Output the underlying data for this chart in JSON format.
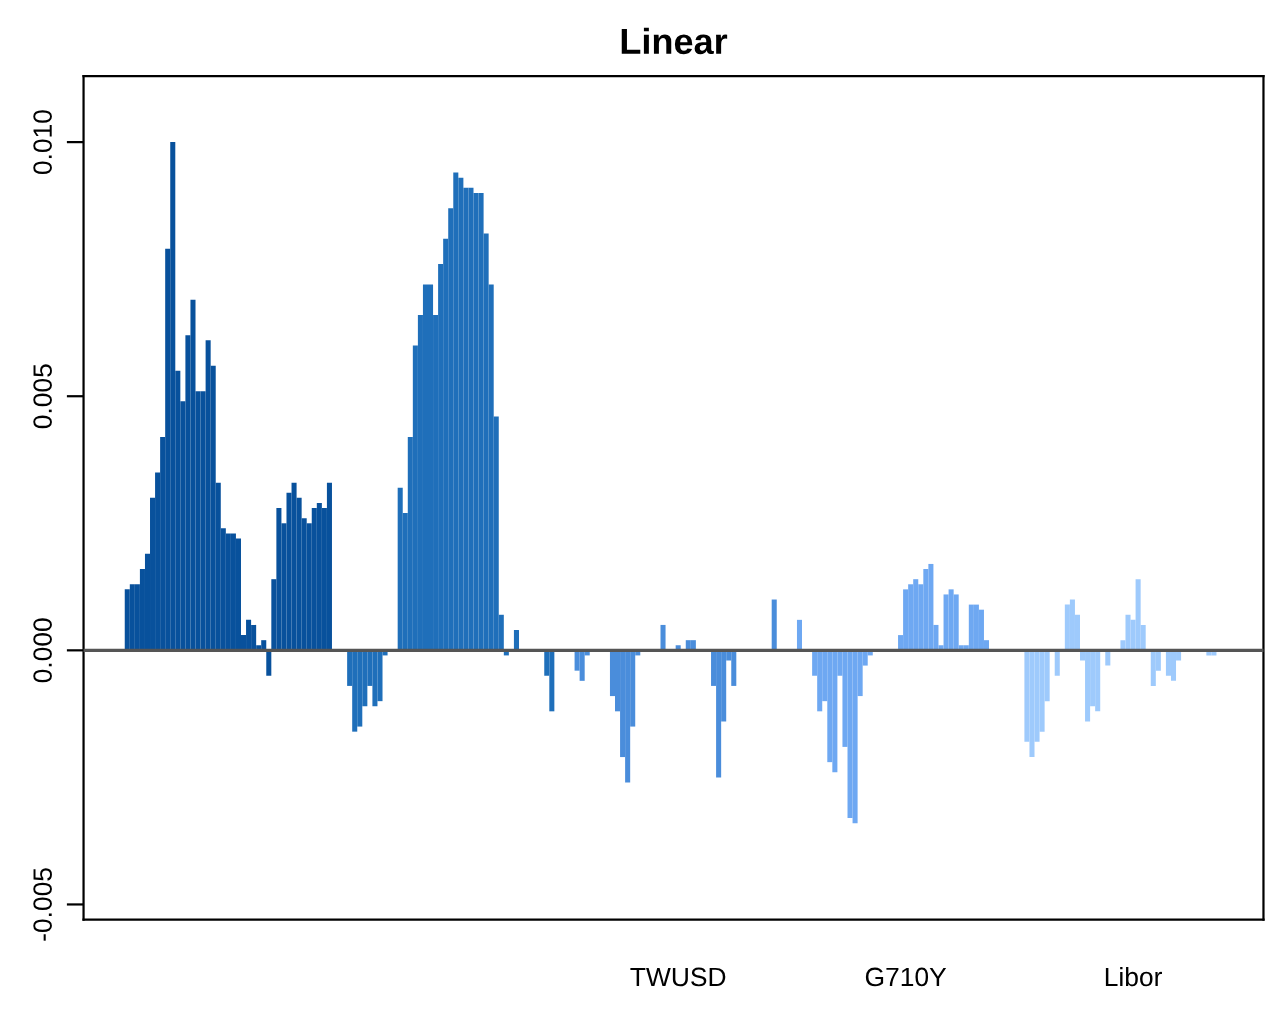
{
  "chart_data": {
    "type": "bar",
    "title": "Linear",
    "categories": [
      null,
      null,
      null,
      null,
      null,
      null,
      null,
      null,
      null,
      null,
      null,
      null,
      null,
      null,
      null,
      null,
      null,
      null,
      null,
      null,
      null,
      null,
      null,
      null,
      null,
      null,
      null,
      null,
      null,
      null,
      null,
      null,
      null,
      null,
      null,
      null,
      null,
      null,
      null,
      null,
      null,
      null,
      null,
      null,
      null,
      null,
      null,
      null,
      null,
      null,
      null,
      null,
      null,
      null,
      null,
      null,
      null,
      null,
      null,
      null,
      null,
      null,
      null,
      null,
      null,
      null,
      null,
      null,
      null,
      null,
      null,
      null,
      null,
      null,
      null,
      null,
      null,
      null,
      null,
      null,
      null,
      null,
      null,
      null,
      null,
      null,
      null,
      null,
      null,
      null,
      null,
      null,
      null,
      null,
      null,
      null,
      null,
      null,
      null,
      null,
      null,
      null,
      null,
      null,
      null,
      null,
      null,
      null,
      null,
      null,
      null,
      null,
      "TWUSD",
      null,
      null,
      null,
      null,
      null,
      null,
      null,
      null,
      null,
      null,
      null,
      null,
      null,
      null,
      null,
      null,
      null,
      null,
      null,
      null,
      null,
      null,
      null,
      null,
      null,
      null,
      null,
      null,
      null,
      null,
      null,
      null,
      null,
      null,
      null,
      null,
      null,
      null,
      null,
      null,
      null,
      null,
      null,
      null,
      "G710Y",
      null,
      null,
      null,
      null,
      null,
      null,
      null,
      null,
      null,
      null,
      null,
      null,
      null,
      null,
      null,
      null,
      null,
      null,
      null,
      null,
      null,
      null,
      null,
      null,
      null,
      null,
      null,
      null,
      null,
      null,
      null,
      null,
      null,
      null,
      null,
      null,
      null,
      null,
      null,
      null,
      null,
      null,
      null,
      null,
      "Libor",
      null,
      null,
      null,
      null,
      null,
      null,
      null,
      null,
      null,
      null,
      null,
      null,
      null,
      null,
      null,
      null,
      null,
      null,
      null,
      null,
      null,
      null
    ],
    "values": [
      0,
      0,
      0,
      0.0012,
      0.0013,
      0.0013,
      0.0016,
      0.0019,
      0.003,
      0.0035,
      0.0042,
      0.0079,
      0.01,
      0.0055,
      0.0049,
      0.0062,
      0.0069,
      0.0051,
      0.0051,
      0.0061,
      0.0056,
      0.0033,
      0.0024,
      0.0023,
      0.0023,
      0.0022,
      0.0003,
      0.0006,
      0.0005,
      0.0001,
      0.0002,
      -0.0005,
      0.0014,
      0.0028,
      0.0025,
      0.0031,
      0.0033,
      0.003,
      0.0026,
      0.0025,
      0.0028,
      0.0029,
      0.0028,
      0.0033,
      0,
      0,
      0,
      -0.0007,
      -0.0016,
      -0.0015,
      -0.0011,
      -0.0007,
      -0.0011,
      -0.001,
      -0.0001,
      0,
      0,
      0.0032,
      0.0027,
      0.0042,
      0.006,
      0.0066,
      0.0072,
      0.0072,
      0.0066,
      0.0076,
      0.0081,
      0.0087,
      0.0094,
      0.0093,
      0.0091,
      0.0091,
      0.009,
      0.009,
      0.0082,
      0.0072,
      0.0046,
      0.0007,
      -0.0001,
      0,
      0.0004,
      0,
      0,
      0,
      0,
      0,
      -0.0005,
      -0.0012,
      0,
      0,
      0,
      0,
      -0.0004,
      -0.0006,
      -0.0001,
      0,
      0,
      0,
      0,
      -0.0009,
      -0.0012,
      -0.0021,
      -0.0026,
      -0.0015,
      -0.0001,
      0,
      0,
      0,
      0,
      0.0005,
      0,
      0,
      0.0001,
      0,
      0.0002,
      0.0002,
      0,
      0,
      0,
      -0.0007,
      -0.0025,
      -0.0014,
      -0.0002,
      -0.0007,
      0,
      0,
      0,
      0,
      0,
      0,
      0,
      0.001,
      0,
      0,
      0,
      0,
      0.0006,
      0,
      0,
      -0.0005,
      -0.0012,
      -0.001,
      -0.0022,
      -0.0024,
      -0.0005,
      -0.0019,
      -0.0033,
      -0.0034,
      -0.0009,
      -0.0003,
      -0.0001,
      0,
      0,
      0,
      0,
      0,
      0.0003,
      0.0012,
      0.0013,
      0.0014,
      0.0013,
      0.0016,
      0.0017,
      0.0005,
      0.0001,
      0.0011,
      0.0012,
      0.0011,
      0.0001,
      0.0001,
      0.0009,
      0.0009,
      0.0008,
      0.0002,
      0,
      0,
      0,
      0,
      0,
      0,
      0,
      -0.0018,
      -0.0021,
      -0.0018,
      -0.0016,
      -0.001,
      0,
      -0.0005,
      0,
      0.0009,
      0.001,
      0.0007,
      -0.0002,
      -0.0014,
      -0.0011,
      -0.0012,
      0,
      -0.0003,
      0,
      0,
      0.0002,
      0.0007,
      0.0006,
      0.0014,
      0.0005,
      0,
      -0.0007,
      -0.0004,
      0,
      -0.0005,
      -0.0006,
      -0.0002,
      0,
      0,
      0,
      0,
      0,
      -0.0001,
      -0.0001,
      0,
      0,
      0,
      0,
      0,
      0
    ],
    "colors": [
      "#08519c",
      "#08519c",
      "#08519c",
      "#08519c",
      "#08519c",
      "#08519c",
      "#08519c",
      "#08519c",
      "#08519c",
      "#08519c",
      "#08519c",
      "#08519c",
      "#08519c",
      "#08519c",
      "#08519c",
      "#08519c",
      "#08519c",
      "#08519c",
      "#08519c",
      "#08519c",
      "#08519c",
      "#08519c",
      "#08519c",
      "#08519c",
      "#08519c",
      "#08519c",
      "#08519c",
      "#08519c",
      "#08519c",
      "#08519c",
      "#08519c",
      "#08519c",
      "#08519c",
      "#08519c",
      "#08519c",
      "#08519c",
      "#08519c",
      "#08519c",
      "#08519c",
      "#08519c",
      "#08519c",
      "#08519c",
      "#08519c",
      "#08519c",
      "#08519c",
      "#1f6fba",
      "#1f6fba",
      "#1f6fba",
      "#1f6fba",
      "#1f6fba",
      "#1f6fba",
      "#1f6fba",
      "#1f6fba",
      "#1f6fba",
      "#1f6fba",
      "#1f6fba",
      "#1f6fba",
      "#1f6fba",
      "#1f6fba",
      "#1f6fba",
      "#1f6fba",
      "#1f6fba",
      "#1f6fba",
      "#1f6fba",
      "#1f6fba",
      "#1f6fba",
      "#1f6fba",
      "#1f6fba",
      "#1f6fba",
      "#1f6fba",
      "#1f6fba",
      "#1f6fba",
      "#1f6fba",
      "#1f6fba",
      "#1f6fba",
      "#1f6fba",
      "#1f6fba",
      "#1f6fba",
      "#1f6fba",
      "#1f6fba",
      "#1f6fba",
      "#1f6fba",
      "#1f6fba",
      "#1f6fba",
      "#1f6fba",
      "#1f6fba",
      "#1f6fba",
      "#1f6fba",
      "#1f6fba",
      "#1f6fba",
      "#4a8ddb",
      "#4a8ddb",
      "#4a8ddb",
      "#4a8ddb",
      "#4a8ddb",
      "#4a8ddb",
      "#4a8ddb",
      "#4a8ddb",
      "#4a8ddb",
      "#4a8ddb",
      "#4a8ddb",
      "#4a8ddb",
      "#4a8ddb",
      "#4a8ddb",
      "#4a8ddb",
      "#4a8ddb",
      "#4a8ddb",
      "#4a8ddb",
      "#4a8ddb",
      "#4a8ddb",
      "#4a8ddb",
      "#4a8ddb",
      "#4a8ddb",
      "#4a8ddb",
      "#4a8ddb",
      "#4a8ddb",
      "#4a8ddb",
      "#4a8ddb",
      "#4a8ddb",
      "#4a8ddb",
      "#4a8ddb",
      "#4a8ddb",
      "#4a8ddb",
      "#4a8ddb",
      "#4a8ddb",
      "#4a8ddb",
      "#4a8ddb",
      "#4a8ddb",
      "#4a8ddb",
      "#4a8ddb",
      "#4a8ddb",
      "#4a8ddb",
      "#4a8ddb",
      "#4a8ddb",
      "#4a8ddb",
      "#6ea8f2",
      "#6ea8f2",
      "#6ea8f2",
      "#6ea8f2",
      "#6ea8f2",
      "#6ea8f2",
      "#6ea8f2",
      "#6ea8f2",
      "#6ea8f2",
      "#6ea8f2",
      "#6ea8f2",
      "#6ea8f2",
      "#6ea8f2",
      "#6ea8f2",
      "#6ea8f2",
      "#6ea8f2",
      "#6ea8f2",
      "#6ea8f2",
      "#6ea8f2",
      "#6ea8f2",
      "#6ea8f2",
      "#6ea8f2",
      "#6ea8f2",
      "#6ea8f2",
      "#6ea8f2",
      "#6ea8f2",
      "#6ea8f2",
      "#6ea8f2",
      "#6ea8f2",
      "#6ea8f2",
      "#6ea8f2",
      "#6ea8f2",
      "#6ea8f2",
      "#6ea8f2",
      "#6ea8f2",
      "#6ea8f2",
      "#6ea8f2",
      "#6ea8f2",
      "#6ea8f2",
      "#6ea8f2",
      "#6ea8f2",
      "#6ea8f2",
      "#6ea8f2",
      "#6ea8f2",
      "#6ea8f2",
      "#9ecafc",
      "#9ecafc",
      "#9ecafc",
      "#9ecafc",
      "#9ecafc",
      "#9ecafc",
      "#9ecafc",
      "#9ecafc",
      "#9ecafc",
      "#9ecafc",
      "#9ecafc",
      "#9ecafc",
      "#9ecafc",
      "#9ecafc",
      "#9ecafc",
      "#9ecafc",
      "#9ecafc",
      "#9ecafc",
      "#9ecafc",
      "#9ecafc",
      "#9ecafc",
      "#9ecafc",
      "#9ecafc",
      "#9ecafc",
      "#9ecafc",
      "#9ecafc",
      "#9ecafc",
      "#9ecafc",
      "#9ecafc",
      "#9ecafc",
      "#9ecafc",
      "#9ecafc",
      "#9ecafc",
      "#9ecafc",
      "#9ecafc",
      "#9ecafc",
      "#9ecafc",
      "#9ecafc",
      "#9ecafc",
      "#9ecafc",
      "#9ecafc",
      "#9ecafc",
      "#9ecafc",
      "#9ecafc",
      "#9ecafc"
    ],
    "ylim": [
      -0.0053,
      0.0113
    ],
    "yticks": [
      {
        "value": -0.005,
        "label": "-0.005"
      },
      {
        "value": 0,
        "label": "0.000"
      },
      {
        "value": 0.005,
        "label": "0.005"
      },
      {
        "value": 0.01,
        "label": "0.010"
      }
    ],
    "ref_lines": [
      {
        "axis": "y",
        "value": 0,
        "color": "#555555"
      }
    ]
  }
}
